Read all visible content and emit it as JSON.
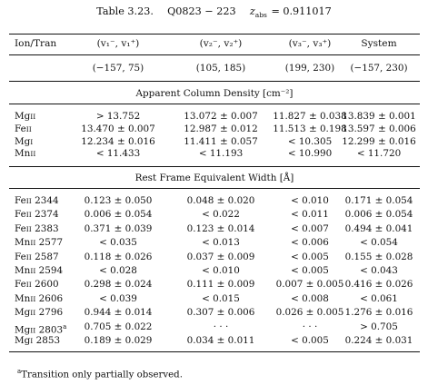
{
  "caption": {
    "table_label": "Table 3.23.",
    "quasar": "Q0823 − 223",
    "redshift": "zₐₐₐ",
    "redshift_symbol": "z",
    "redshift_sub": "abs",
    "redshift_value": "= 0.911017"
  },
  "header": {
    "col0": "Ion/Tran",
    "col1": "(v₁⁻, v₁⁺)",
    "col2": "(v₂⁻, v₂⁺)",
    "col3": "(v₃⁻, v₃⁺)",
    "col4": "System",
    "ranges": [
      "(−157, 75)",
      "(105, 185)",
      "(199, 230)",
      "(−157, 230)"
    ]
  },
  "section1": {
    "title": "Apparent Column Density [cm⁻²]",
    "rows": [
      {
        "ion": "MgII",
        "ion_base": "Mg",
        "ion_stage": "II",
        "v1": "> 13.752",
        "v2": "13.072 ± 0.007",
        "v3": "11.827 ± 0.038",
        "sys": "13.839 ± 0.001"
      },
      {
        "ion": "FeII",
        "ion_base": "Fe",
        "ion_stage": "II",
        "v1": "13.470 ± 0.007",
        "v2": "12.987 ± 0.012",
        "v3": "11.513 ± 0.198",
        "sys": "13.597 ± 0.006"
      },
      {
        "ion": "MgI",
        "ion_base": "Mg",
        "ion_stage": "I",
        "v1": "12.234 ± 0.016",
        "v2": "11.411 ± 0.057",
        "v3": "< 10.305",
        "sys": "12.299 ± 0.016"
      },
      {
        "ion": "MnII",
        "ion_base": "Mn",
        "ion_stage": "II",
        "v1": "< 11.433",
        "v2": "< 11.193",
        "v3": "< 10.990",
        "sys": "< 11.720"
      }
    ]
  },
  "section2": {
    "title": "Rest Frame Equivalent Width [Å]",
    "rows": [
      {
        "ion_base": "Fe",
        "ion_stage": "II",
        "wave": "2344",
        "note": "",
        "v1": "0.123 ± 0.050",
        "v2": "0.048 ± 0.020",
        "v3": "< 0.010",
        "sys": "0.171 ± 0.054"
      },
      {
        "ion_base": "Fe",
        "ion_stage": "II",
        "wave": "2374",
        "note": "",
        "v1": "0.006 ± 0.054",
        "v2": "< 0.022",
        "v3": "< 0.011",
        "sys": "0.006 ± 0.054"
      },
      {
        "ion_base": "Fe",
        "ion_stage": "II",
        "wave": "2383",
        "note": "",
        "v1": "0.371 ± 0.039",
        "v2": "0.123 ± 0.014",
        "v3": "< 0.007",
        "sys": "0.494 ± 0.041"
      },
      {
        "ion_base": "Mn",
        "ion_stage": "II",
        "wave": "2577",
        "note": "",
        "v1": "< 0.035",
        "v2": "< 0.013",
        "v3": "< 0.006",
        "sys": "< 0.054"
      },
      {
        "ion_base": "Fe",
        "ion_stage": "II",
        "wave": "2587",
        "note": "",
        "v1": "0.118 ± 0.026",
        "v2": "0.037 ± 0.009",
        "v3": "< 0.005",
        "sys": "0.155 ± 0.028"
      },
      {
        "ion_base": "Mn",
        "ion_stage": "II",
        "wave": "2594",
        "note": "",
        "v1": "< 0.028",
        "v2": "< 0.010",
        "v3": "< 0.005",
        "sys": "< 0.043"
      },
      {
        "ion_base": "Fe",
        "ion_stage": "II",
        "wave": "2600",
        "note": "",
        "v1": "0.298 ± 0.024",
        "v2": "0.111 ± 0.009",
        "v3": "0.007 ± 0.005",
        "sys": "0.416 ± 0.026"
      },
      {
        "ion_base": "Mn",
        "ion_stage": "II",
        "wave": "2606",
        "note": "",
        "v1": "< 0.039",
        "v2": "< 0.015",
        "v3": "< 0.008",
        "sys": "< 0.061"
      },
      {
        "ion_base": "Mg",
        "ion_stage": "II",
        "wave": "2796",
        "note": "",
        "v1": "0.944 ± 0.014",
        "v2": "0.307 ± 0.006",
        "v3": "0.026 ± 0.005",
        "sys": "1.276 ± 0.016"
      },
      {
        "ion_base": "Mg",
        "ion_stage": "II",
        "wave": "2803",
        "note": "a",
        "v1": "0.705 ± 0.022",
        "v2": "· · ·",
        "v3": "· · ·",
        "sys": "> 0.705"
      },
      {
        "ion_base": "Mg",
        "ion_stage": "I",
        "wave": "2853",
        "note": "",
        "v1": "0.189 ± 0.029",
        "v2": "0.034 ± 0.011",
        "v3": "< 0.005",
        "sys": "0.224 ± 0.031"
      }
    ]
  },
  "footnote": {
    "mark": "a",
    "text": "Transition only partially observed."
  }
}
